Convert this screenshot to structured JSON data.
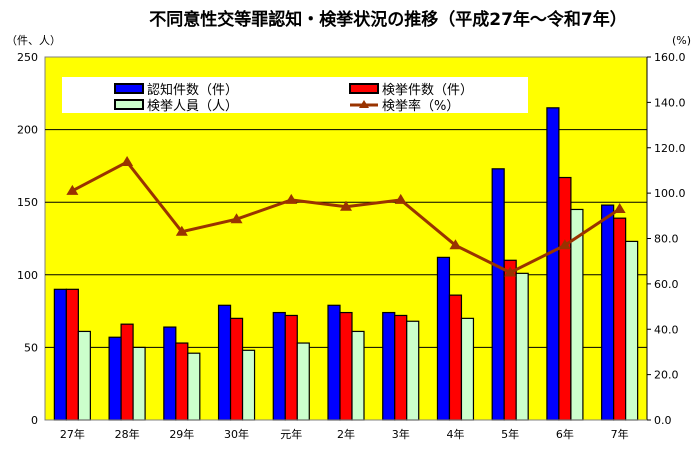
{
  "chart_data": {
    "type": "bar",
    "title": "不同意性交等罪認知・検挙状況の推移（平成27年～令和7年）",
    "ylabel_left": "（件、人）",
    "ylabel_right": "(%)",
    "categories": [
      "27年",
      "28年",
      "29年",
      "30年",
      "元年",
      "2年",
      "3年",
      "4年",
      "5年",
      "6年",
      "7年"
    ],
    "ylim_left": [
      0,
      250
    ],
    "yticks_left": [
      "0",
      "50",
      "100",
      "150",
      "200",
      "250"
    ],
    "ylim_right": [
      0,
      160
    ],
    "yticks_right": [
      "0.0",
      "20.0",
      "40.0",
      "60.0",
      "80.0",
      "100.0",
      "120.0",
      "140.0",
      "160.0"
    ],
    "grid": true,
    "legend_placement": "top",
    "series": [
      {
        "name": "認知件数（件）",
        "type": "bar",
        "axis": "left",
        "color": "#0000ff",
        "values": [
          90,
          57,
          64,
          79,
          74,
          79,
          74,
          112,
          173,
          215,
          148
        ]
      },
      {
        "name": "検挙件数（件）",
        "type": "bar",
        "axis": "left",
        "color": "#ff0000",
        "values": [
          90,
          66,
          53,
          70,
          72,
          74,
          72,
          86,
          110,
          167,
          139
        ]
      },
      {
        "name": "検挙人員（人）",
        "type": "bar",
        "axis": "left",
        "color": "#ccffcc",
        "values": [
          61,
          50,
          46,
          48,
          53,
          61,
          68,
          70,
          101,
          145,
          123
        ]
      },
      {
        "name": "検挙率（%）",
        "type": "line",
        "axis": "right",
        "color": "#993300",
        "values": [
          101,
          113.7,
          83,
          88.5,
          97,
          94,
          97,
          77,
          65,
          77,
          93
        ]
      }
    ],
    "plot_bg": "#ffff00"
  }
}
